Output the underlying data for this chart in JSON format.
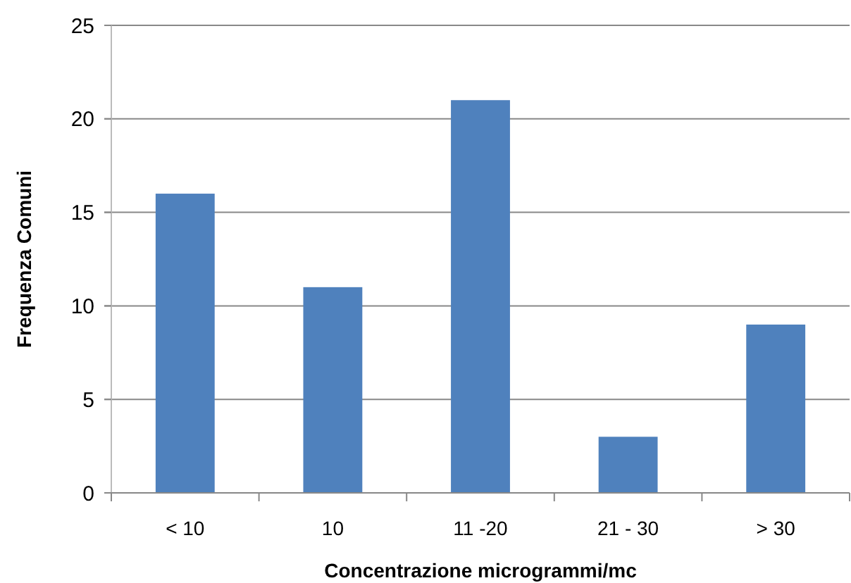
{
  "chart_data": {
    "type": "bar",
    "xlabel": "Concentrazione microgrammi/mc",
    "ylabel": "Frequenza Comuni",
    "categories": [
      "< 10",
      "10",
      "11 -20",
      "21 - 30",
      "> 30"
    ],
    "values": [
      16,
      11,
      21,
      3,
      9
    ],
    "color": "#4f81bd",
    "ylim": [
      0,
      25
    ],
    "yticks": [
      0,
      5,
      10,
      15,
      20,
      25
    ],
    "grid": "y"
  }
}
